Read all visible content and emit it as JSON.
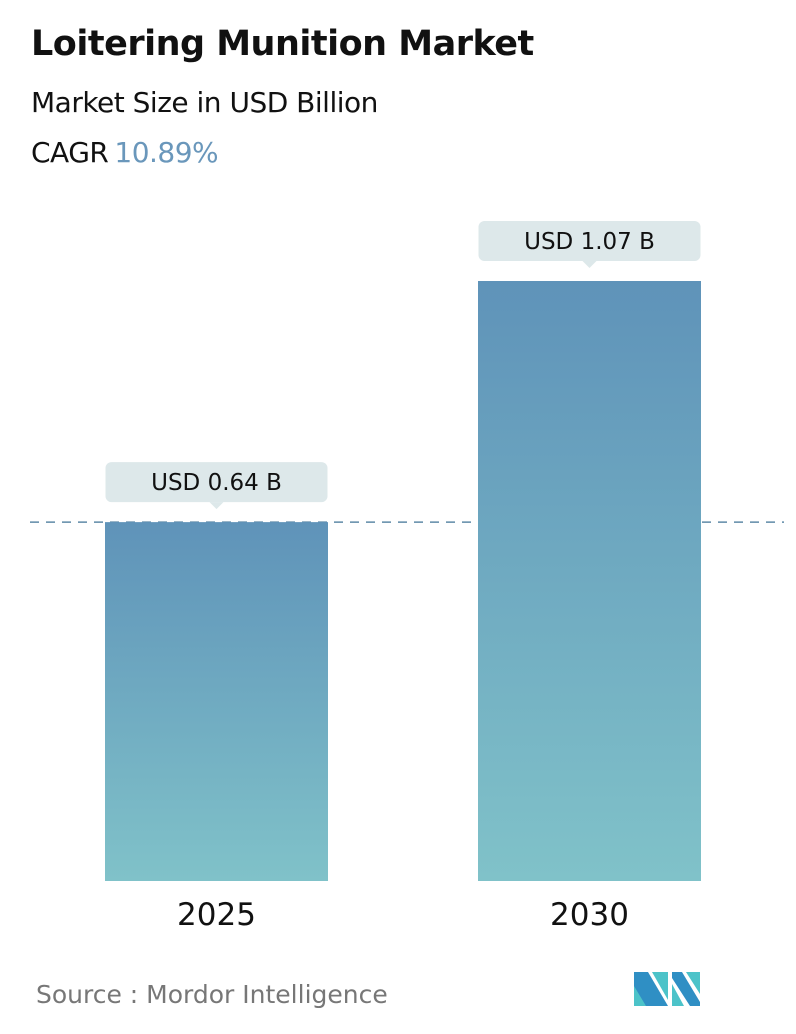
{
  "header": {
    "title": "Loitering Munition Market",
    "subtitle": "Market Size in USD Billion",
    "cagr_label": "CAGR",
    "cagr_value": "10.89%"
  },
  "chart_data": {
    "type": "bar",
    "categories": [
      "2025",
      "2030"
    ],
    "values": [
      0.64,
      1.07
    ],
    "data_labels": [
      "USD 0.64 B",
      "USD 1.07 B"
    ],
    "unit": "USD Billion",
    "reference_line": {
      "value": 0.64,
      "style": "dashed"
    },
    "grid": false,
    "colors": {
      "bar_top": "#5f93b9",
      "bar_bottom": "#80c2c9",
      "label_bg": "#dde8ea",
      "ref_line": "#5f8aa8",
      "cagr": "#6a97bb"
    }
  },
  "footer": {
    "source": "Source :  Mordor Intelligence",
    "logo": "Mordor Intelligence"
  }
}
